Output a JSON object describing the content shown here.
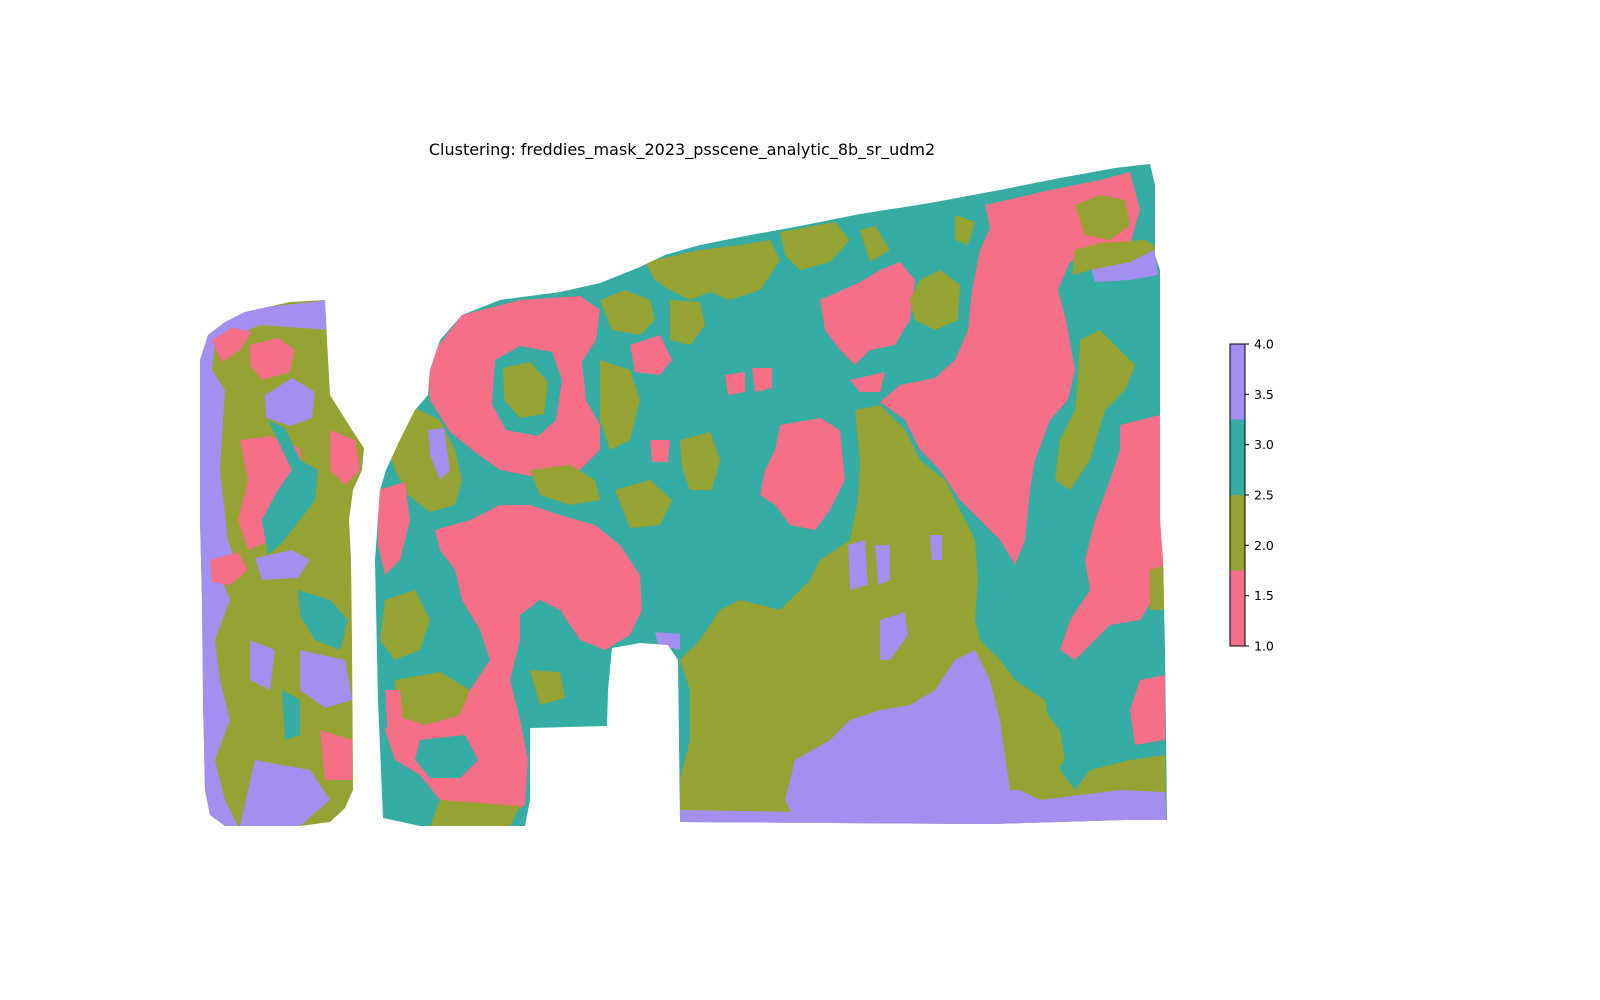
{
  "chart_data": {
    "type": "heatmap",
    "title": "Clustering: freddies_mask_2023_psscene_analytic_8b_sr_udm2",
    "xlabel": "",
    "ylabel": "",
    "axes_visible": false,
    "colorbar": {
      "range": [
        1.0,
        4.0
      ],
      "ticks": [
        "1.0",
        "1.5",
        "2.0",
        "2.5",
        "3.0",
        "3.5",
        "4.0"
      ],
      "tick_values": [
        1.0,
        1.5,
        2.0,
        2.5,
        3.0,
        3.5,
        4.0
      ],
      "placement": "right"
    },
    "classes": [
      {
        "value": 1,
        "color": "#f46f87"
      },
      {
        "value": 2,
        "color": "#96a231"
      },
      {
        "value": 3,
        "color": "#35ac a4"
      },
      {
        "value": 4,
        "color": "#a48ef0"
      }
    ],
    "cluster_colors": [
      "#f46f87",
      "#96a231",
      "#35aca4",
      "#a48ef0"
    ]
  }
}
